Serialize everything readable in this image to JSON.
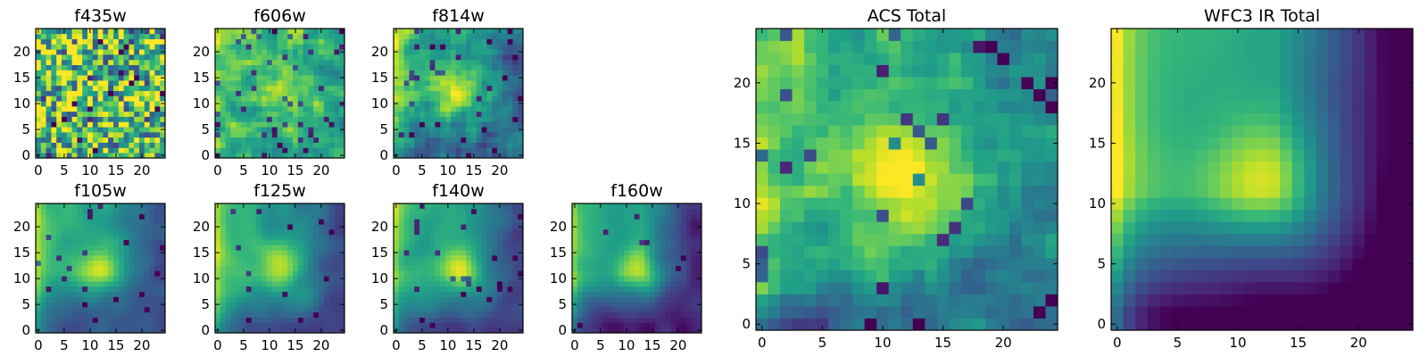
{
  "chart_data": [
    {
      "type": "heatmap",
      "title": "f435w",
      "xticks": [
        "0",
        "5",
        "10",
        "15",
        "20"
      ],
      "yticks": [
        "0",
        "5",
        "10",
        "15",
        "20"
      ],
      "xlim": [
        -0.5,
        24.5
      ],
      "ylim": [
        -0.5,
        24.5
      ],
      "colormap": "viridis",
      "grid_size": 25,
      "texture": {
        "seed": 11,
        "noise": 0.85,
        "smooth": 0.05,
        "base": 0.7,
        "blob": 0.0,
        "low_corner": 0.0,
        "left_edge": 0.05,
        "speckle": 0.08
      }
    },
    {
      "type": "heatmap",
      "title": "f606w",
      "xticks": [
        "0",
        "5",
        "10",
        "15",
        "20"
      ],
      "yticks": [
        "0",
        "5",
        "10",
        "15",
        "20"
      ],
      "xlim": [
        -0.5,
        24.5
      ],
      "ylim": [
        -0.5,
        24.5
      ],
      "colormap": "viridis",
      "grid_size": 25,
      "texture": {
        "seed": 23,
        "noise": 0.75,
        "smooth": 0.15,
        "base": 0.68,
        "blob": 0.2,
        "low_corner": 0.08,
        "left_edge": 0.1,
        "speckle": 0.07
      }
    },
    {
      "type": "heatmap",
      "title": "f814w",
      "xticks": [
        "0",
        "5",
        "10",
        "15",
        "20"
      ],
      "yticks": [
        "0",
        "5",
        "10",
        "15",
        "20"
      ],
      "xlim": [
        -0.5,
        24.5
      ],
      "ylim": [
        -0.5,
        24.5
      ],
      "colormap": "viridis",
      "grid_size": 25,
      "texture": {
        "seed": 37,
        "noise": 0.6,
        "smooth": 0.25,
        "base": 0.6,
        "blob": 0.35,
        "low_corner": 0.25,
        "left_edge": 0.2,
        "speckle": 0.06
      }
    },
    {
      "type": "heatmap",
      "title": "f105w",
      "xticks": [
        "0",
        "5",
        "10",
        "15",
        "20"
      ],
      "yticks": [
        "0",
        "5",
        "10",
        "15",
        "20"
      ],
      "xlim": [
        -0.5,
        24.5
      ],
      "ylim": [
        -0.5,
        24.5
      ],
      "colormap": "viridis",
      "grid_size": 25,
      "texture": {
        "seed": 41,
        "noise": 0.35,
        "smooth": 0.7,
        "base": 0.58,
        "blob": 0.35,
        "low_corner": 0.35,
        "left_edge": 0.3,
        "speckle": 0.03
      }
    },
    {
      "type": "heatmap",
      "title": "f125w",
      "xticks": [
        "0",
        "5",
        "10",
        "15",
        "20"
      ],
      "yticks": [
        "0",
        "5",
        "10",
        "15",
        "20"
      ],
      "xlim": [
        -0.5,
        24.5
      ],
      "ylim": [
        -0.5,
        24.5
      ],
      "colormap": "viridis",
      "grid_size": 25,
      "texture": {
        "seed": 53,
        "noise": 0.35,
        "smooth": 0.7,
        "base": 0.58,
        "blob": 0.3,
        "low_corner": 0.3,
        "left_edge": 0.3,
        "speckle": 0.03
      }
    },
    {
      "type": "heatmap",
      "title": "f140w",
      "xticks": [
        "0",
        "5",
        "10",
        "15",
        "20"
      ],
      "yticks": [
        "0",
        "5",
        "10",
        "15",
        "20"
      ],
      "xlim": [
        -0.5,
        24.5
      ],
      "ylim": [
        -0.5,
        24.5
      ],
      "colormap": "viridis",
      "grid_size": 25,
      "texture": {
        "seed": 67,
        "noise": 0.3,
        "smooth": 0.75,
        "base": 0.58,
        "blob": 0.35,
        "low_corner": 0.35,
        "left_edge": 0.3,
        "speckle": 0.03
      }
    },
    {
      "type": "heatmap",
      "title": "f160w",
      "xticks": [
        "0",
        "5",
        "10",
        "15",
        "20"
      ],
      "yticks": [
        "0",
        "5",
        "10",
        "15",
        "20"
      ],
      "xlim": [
        -0.5,
        24.5
      ],
      "ylim": [
        -0.5,
        24.5
      ],
      "colormap": "viridis",
      "grid_size": 25,
      "texture": {
        "seed": 79,
        "noise": 0.3,
        "smooth": 0.8,
        "base": 0.55,
        "blob": 0.35,
        "low_corner": 0.45,
        "left_edge": 0.3,
        "speckle": 0.02
      }
    },
    {
      "type": "heatmap",
      "title": "ACS Total",
      "xticks": [
        "0",
        "5",
        "10",
        "15",
        "20"
      ],
      "yticks": [
        "0",
        "5",
        "10",
        "15",
        "20"
      ],
      "xlim": [
        -0.5,
        24.5
      ],
      "ylim": [
        -0.5,
        24.5
      ],
      "colormap": "viridis",
      "grid_size": 25,
      "texture": {
        "seed": 97,
        "noise": 0.55,
        "smooth": 0.25,
        "base": 0.66,
        "blob": 0.35,
        "low_corner": 0.25,
        "left_edge": 0.2,
        "speckle": 0.06
      }
    },
    {
      "type": "heatmap",
      "title": "WFC3 IR Total",
      "xticks": [
        "0",
        "5",
        "10",
        "15",
        "20"
      ],
      "yticks": [
        "0",
        "5",
        "10",
        "15",
        "20"
      ],
      "xlim": [
        -0.5,
        24.5
      ],
      "ylim": [
        -0.5,
        24.5
      ],
      "colormap": "viridis",
      "grid_size": 25,
      "texture": {
        "seed": 101,
        "noise": 0.1,
        "smooth": 0.95,
        "base": 0.6,
        "blob": 0.35,
        "low_corner": 0.65,
        "left_edge": 0.4,
        "speckle": 0.0
      }
    }
  ],
  "colors": {
    "viridis": [
      "#440154",
      "#482878",
      "#3e4989",
      "#31688e",
      "#26828e",
      "#1f9e89",
      "#35b779",
      "#6ece58",
      "#b5de2b",
      "#fde725"
    ]
  }
}
